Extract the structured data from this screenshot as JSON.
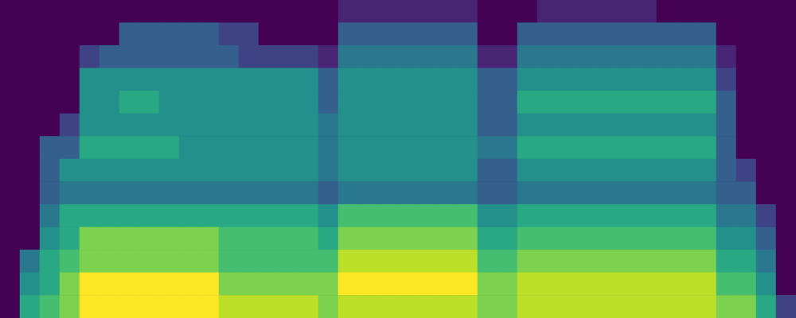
{
  "chart_data": {
    "type": "heatmap",
    "tick_labels": false,
    "zlim": [
      0,
      10
    ],
    "cells": [
      [
        0,
        0,
        0,
        0,
        0,
        0,
        0,
        0,
        0,
        0,
        0,
        0,
        0,
        0,
        0,
        0,
        0,
        1,
        1,
        1,
        1,
        1,
        1,
        1,
        0,
        0,
        0,
        1,
        1,
        1,
        1,
        1,
        1,
        0,
        0,
        0,
        0,
        0,
        0,
        0
      ],
      [
        0,
        0,
        0,
        0,
        0,
        0,
        3,
        3,
        3,
        3,
        3,
        2,
        2,
        0,
        0,
        0,
        0,
        3,
        3,
        3,
        3,
        3,
        3,
        3,
        0,
        0,
        3,
        3,
        3,
        3,
        3,
        3,
        3,
        3,
        3,
        3,
        0,
        0,
        0,
        0
      ],
      [
        0,
        0,
        0,
        0,
        2,
        3,
        3,
        3,
        3,
        3,
        3,
        3,
        2,
        2,
        2,
        2,
        1,
        4,
        4,
        4,
        4,
        4,
        4,
        4,
        1,
        1,
        4,
        4,
        4,
        4,
        4,
        4,
        4,
        4,
        4,
        4,
        1,
        0,
        0,
        0
      ],
      [
        0,
        0,
        0,
        0,
        5,
        5,
        5,
        5,
        5,
        5,
        5,
        5,
        5,
        5,
        5,
        5,
        3,
        5,
        5,
        5,
        5,
        5,
        5,
        5,
        3,
        3,
        5,
        5,
        5,
        5,
        5,
        5,
        5,
        5,
        5,
        5,
        2,
        0,
        0,
        0
      ],
      [
        0,
        0,
        0,
        0,
        5,
        5,
        6,
        6,
        5,
        5,
        5,
        5,
        5,
        5,
        5,
        5,
        3,
        5,
        5,
        5,
        5,
        5,
        5,
        5,
        3,
        3,
        6,
        6,
        6,
        6,
        6,
        6,
        6,
        6,
        6,
        6,
        3,
        0,
        0,
        0
      ],
      [
        0,
        0,
        0,
        2,
        5,
        5,
        5,
        5,
        5,
        5,
        5,
        5,
        5,
        5,
        5,
        5,
        4,
        5,
        5,
        5,
        5,
        5,
        5,
        5,
        3,
        3,
        5,
        5,
        5,
        5,
        5,
        5,
        5,
        5,
        5,
        5,
        3,
        0,
        0,
        0
      ],
      [
        0,
        0,
        3,
        3,
        6,
        6,
        6,
        6,
        6,
        5,
        5,
        5,
        5,
        5,
        5,
        5,
        4,
        5,
        5,
        5,
        5,
        5,
        5,
        5,
        4,
        4,
        6,
        6,
        6,
        6,
        6,
        6,
        6,
        6,
        6,
        6,
        3,
        0,
        0,
        0
      ],
      [
        0,
        0,
        3,
        5,
        5,
        5,
        5,
        5,
        5,
        5,
        5,
        5,
        5,
        5,
        5,
        5,
        4,
        5,
        5,
        5,
        5,
        5,
        5,
        5,
        3,
        3,
        5,
        5,
        5,
        5,
        5,
        5,
        5,
        5,
        5,
        5,
        3,
        2,
        0,
        0
      ],
      [
        0,
        0,
        3,
        4,
        4,
        4,
        4,
        4,
        4,
        4,
        4,
        4,
        4,
        4,
        4,
        4,
        3,
        4,
        4,
        4,
        4,
        4,
        4,
        4,
        3,
        3,
        4,
        4,
        4,
        4,
        4,
        4,
        4,
        4,
        4,
        4,
        3,
        3,
        0,
        0
      ],
      [
        0,
        0,
        4,
        6,
        6,
        6,
        6,
        6,
        6,
        6,
        6,
        6,
        6,
        6,
        6,
        6,
        5,
        7,
        7,
        7,
        7,
        7,
        7,
        7,
        5,
        5,
        6,
        6,
        6,
        6,
        6,
        6,
        6,
        6,
        6,
        6,
        4,
        4,
        2,
        0
      ],
      [
        0,
        0,
        5,
        6,
        8,
        8,
        8,
        8,
        8,
        8,
        8,
        7,
        7,
        7,
        7,
        7,
        6,
        8,
        8,
        8,
        8,
        8,
        8,
        8,
        6,
        6,
        7,
        7,
        7,
        7,
        7,
        7,
        7,
        7,
        7,
        7,
        5,
        5,
        3,
        0
      ],
      [
        0,
        4,
        6,
        7,
        8,
        8,
        8,
        8,
        8,
        8,
        8,
        7,
        7,
        7,
        7,
        7,
        7,
        9,
        9,
        9,
        9,
        9,
        9,
        9,
        7,
        7,
        8,
        8,
        8,
        8,
        8,
        8,
        8,
        8,
        8,
        8,
        6,
        6,
        4,
        0
      ],
      [
        0,
        5,
        6,
        8,
        10,
        10,
        10,
        10,
        10,
        10,
        10,
        8,
        8,
        8,
        8,
        8,
        8,
        10,
        10,
        10,
        10,
        10,
        10,
        10,
        8,
        8,
        9,
        9,
        9,
        9,
        9,
        9,
        9,
        9,
        9,
        9,
        7,
        7,
        5,
        0
      ],
      [
        0,
        6,
        7,
        8,
        10,
        10,
        10,
        10,
        10,
        10,
        10,
        9,
        9,
        9,
        9,
        9,
        8,
        9,
        9,
        9,
        9,
        9,
        9,
        9,
        8,
        8,
        9,
        9,
        9,
        9,
        9,
        9,
        9,
        9,
        9,
        9,
        8,
        8,
        6,
        2
      ]
    ]
  }
}
